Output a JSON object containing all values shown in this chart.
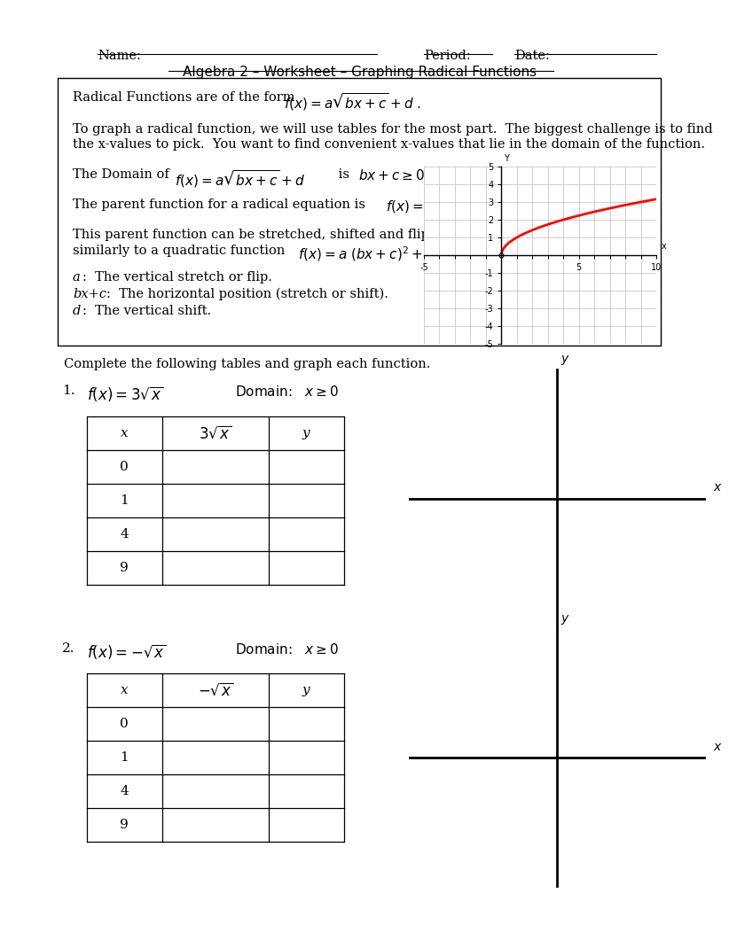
{
  "bg_color": "#ffffff",
  "header_name": "Name:",
  "header_period": "Period:",
  "header_date": "Date:",
  "title": "Algebra 2 – Worksheet – Graphing Radical Functions",
  "box_line1a": "Radical Functions are of the form",
  "box_line1b": "$f(x) = a\\sqrt{bx+c} + d$",
  "box_para": "To graph a radical function, we will use tables for the most part.  The biggest challenge is to find\nthe x-values to pick.  You want to find convenient x-values that lie in the domain of the function.",
  "box_domain_a": "The Domain of",
  "box_domain_b": "$f(x) = a\\sqrt{bx+c} + d$",
  "box_domain_c": "is",
  "box_domain_d": "$bx+c \\geq 0$",
  "box_parent_a": "The parent function for a radical equation is",
  "box_parent_b": "$f(x) = \\sqrt{x}$",
  "box_stretch_a": "This parent function can be stretched, shifted and flipped",
  "box_stretch_b": "similarly to a quadratic function",
  "box_stretch_c": "$f(x) = a\\ (bx+c)^{2} + d$",
  "box_a": "a",
  "box_a_text": ":  The vertical stretch or flip.",
  "box_bxc": "bx+c",
  "box_bxc_text": ":  The horizontal position (stretch or shift).",
  "box_d": "d",
  "box_d_text": ":  The vertical shift.",
  "complete": "Complete the following tables and graph each function.",
  "p1_num": "1.",
  "p1_func": "$f(x) = 3\\sqrt{x}$",
  "p1_domain": "Domain:   $x \\geq 0$",
  "p1_col1": "x",
  "p1_col2": "$3\\sqrt{x}$",
  "p1_col3": "y",
  "p1_rows": [
    "0",
    "1",
    "4",
    "9"
  ],
  "p2_num": "2.",
  "p2_func": "$f(x) = -\\sqrt{x}$",
  "p2_domain": "Domain:   $x \\geq 0$",
  "p2_col1": "x",
  "p2_col2": "$-\\sqrt{x}$",
  "p2_col3": "y",
  "p2_rows": [
    "0",
    "1",
    "4",
    "9"
  ],
  "small_graph_xlim": [
    -5,
    10
  ],
  "small_graph_ylim": [
    -5,
    5
  ],
  "curve_color": "#ff0000",
  "grid_dot_color": "#c8c8c8",
  "axis_lw": 1.2
}
